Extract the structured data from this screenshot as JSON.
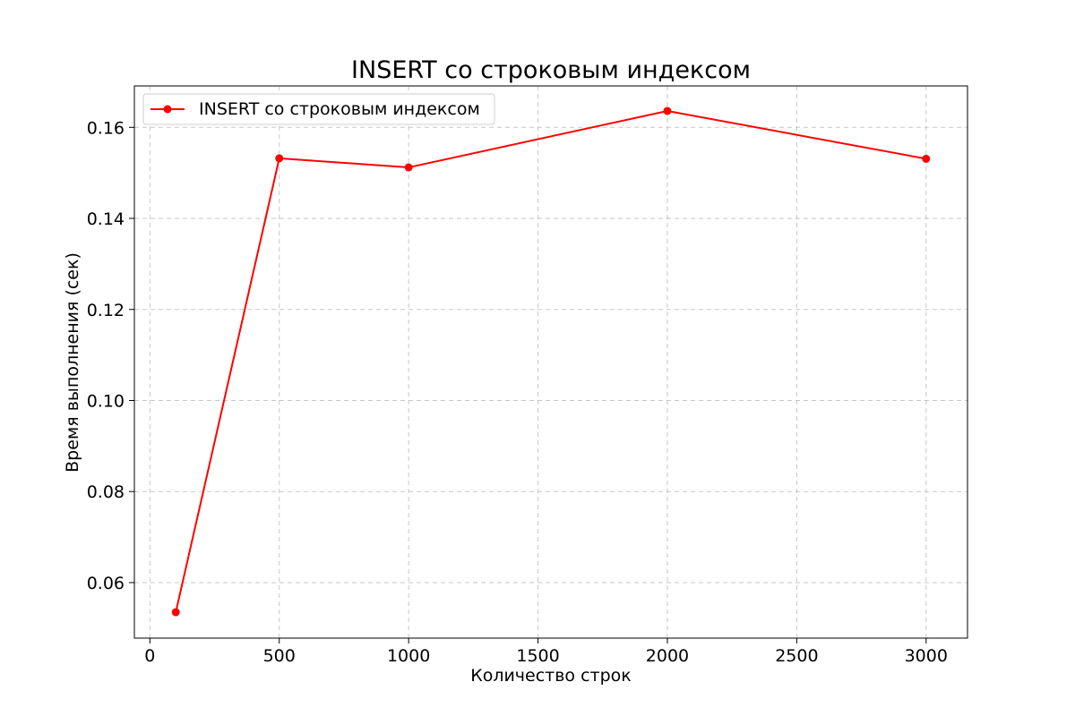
{
  "chart_data": {
    "type": "line",
    "title": "INSERT со строковым индексом",
    "xlabel": "Количество строк",
    "ylabel": "Время выполнения (сек)",
    "xlim": [
      -60,
      3160
    ],
    "ylim": [
      0.0478,
      0.1691
    ],
    "xticks": [
      0,
      500,
      1000,
      1500,
      2000,
      2500,
      3000
    ],
    "yticks": [
      0.06,
      0.08,
      0.1,
      0.12,
      0.14,
      0.16
    ],
    "ytick_labels": [
      "0.06",
      "0.08",
      "0.10",
      "0.12",
      "0.14",
      "0.16"
    ],
    "grid": true,
    "legend_position": "top-left",
    "series": [
      {
        "name": "INSERT со строковым индексом",
        "color": "#ff0000",
        "marker": "circle",
        "x": [
          100,
          500,
          1000,
          2000,
          3000
        ],
        "y": [
          0.0535,
          0.1532,
          0.1512,
          0.1636,
          0.1531
        ]
      }
    ]
  }
}
